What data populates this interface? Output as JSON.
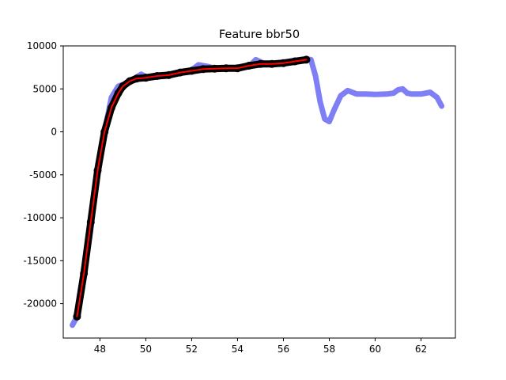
{
  "chart_data": {
    "type": "line",
    "title": "Feature bbr50",
    "xlabel": "",
    "ylabel": "",
    "xlim": [
      46.4,
      63.5
    ],
    "ylim": [
      -24000,
      10000
    ],
    "xticks": [
      48,
      50,
      52,
      54,
      56,
      58,
      60,
      62
    ],
    "yticks": [
      10000,
      5000,
      0,
      -5000,
      -10000,
      -15000,
      -20000
    ],
    "grid": false,
    "legend": "none",
    "series": [
      {
        "style": "thick-line",
        "color": "#7f7ff5",
        "x": [
          46.8,
          47.0,
          47.3,
          47.6,
          47.9,
          48.2,
          48.5,
          48.8,
          49.0,
          49.2,
          49.5,
          49.8,
          50.0,
          50.5,
          51.0,
          51.5,
          52.0,
          52.3,
          52.7,
          53.0,
          53.5,
          54.0,
          54.5,
          54.8,
          55.2,
          55.6,
          56.0,
          56.5,
          57.0,
          57.2,
          57.4,
          57.6,
          57.8,
          58.0,
          58.2,
          58.5,
          58.8,
          59.2,
          59.6,
          60.0,
          60.5,
          60.8,
          61.0,
          61.2,
          61.4,
          61.6,
          62.0,
          62.4,
          62.7,
          62.9
        ],
        "y": [
          -22500,
          -21500,
          -17000,
          -11000,
          -5000,
          0,
          4000,
          5300,
          5500,
          5600,
          6200,
          6700,
          6400,
          6500,
          6600,
          7000,
          7200,
          7800,
          7600,
          7400,
          7400,
          7300,
          7600,
          8400,
          7900,
          8000,
          8100,
          8300,
          8500,
          8400,
          6500,
          3500,
          1500,
          1200,
          2500,
          4200,
          4800,
          4400,
          4400,
          4350,
          4400,
          4500,
          4900,
          5000,
          4500,
          4400,
          4400,
          4600,
          4000,
          3000
        ]
      },
      {
        "style": "markers",
        "color": "#000000",
        "x": [
          47.0,
          47.3,
          47.6,
          47.9,
          48.2,
          48.5,
          48.8,
          49.0,
          49.3,
          49.6,
          50.0,
          50.5,
          51.0,
          51.5,
          52.0,
          52.5,
          53.0,
          53.5,
          54.0,
          54.5,
          55.0,
          55.5,
          56.0,
          56.5,
          57.0
        ],
        "y": [
          -21500,
          -16500,
          -10500,
          -4500,
          0,
          2800,
          4500,
          5300,
          5900,
          6200,
          6300,
          6500,
          6600,
          6900,
          7100,
          7300,
          7350,
          7400,
          7400,
          7700,
          7900,
          7900,
          8000,
          8200,
          8400
        ]
      },
      {
        "style": "line",
        "color": "#ff0000",
        "x": [
          47.0,
          47.3,
          47.6,
          47.9,
          48.2,
          48.5,
          48.8,
          49.0,
          49.3,
          49.6,
          50.0,
          50.5,
          51.0,
          51.5,
          52.0,
          52.5,
          53.0,
          53.5,
          54.0,
          54.5,
          55.0,
          55.5,
          56.0,
          56.5,
          57.0
        ],
        "y": [
          -21500,
          -16500,
          -10500,
          -4500,
          0,
          2800,
          4500,
          5300,
          5900,
          6200,
          6300,
          6500,
          6600,
          6900,
          7100,
          7300,
          7350,
          7400,
          7400,
          7700,
          7900,
          7900,
          8000,
          8200,
          8400
        ]
      }
    ]
  }
}
